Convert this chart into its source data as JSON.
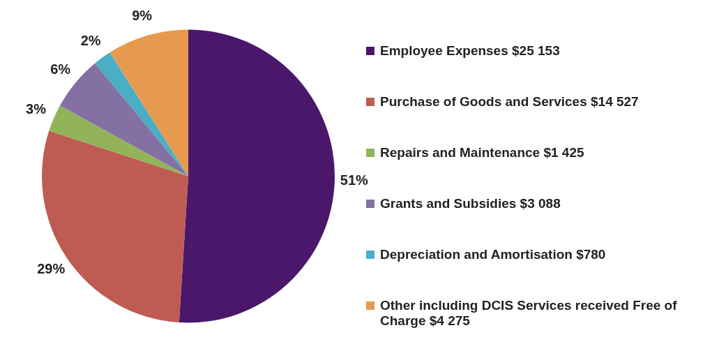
{
  "chart_data": {
    "type": "pie",
    "categories": [
      "Employee Expenses $25 153",
      "Purchase of Goods and Services $14 527",
      "Repairs and Maintenance $1 425",
      "Grants and Subsidies $3 088",
      "Depreciation and Amortisation $780",
      "Other including DCIS Services received Free of Charge $4 275"
    ],
    "values": [
      51,
      29,
      3,
      6,
      2,
      9
    ],
    "colors": [
      "#4b176b",
      "#be5b53",
      "#93b35a",
      "#8470a3",
      "#4aaec5",
      "#e69a4f"
    ],
    "value_labels": [
      "51%",
      "29%",
      "3%",
      "6%",
      "2%",
      "9%"
    ],
    "legend": "right"
  }
}
